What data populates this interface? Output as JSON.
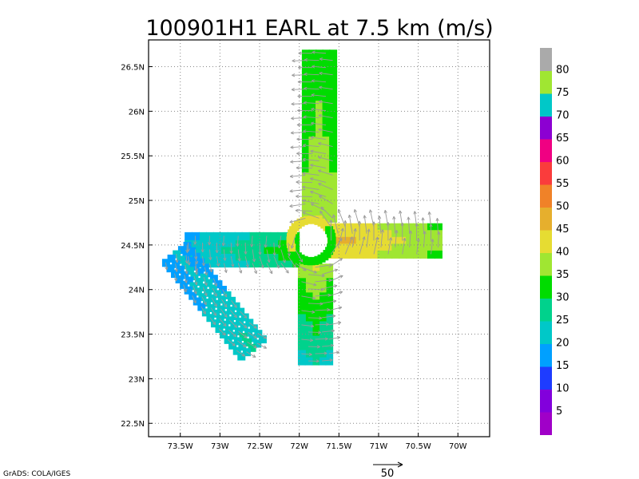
{
  "title": "100901H1 EARL at 7.5 km (m/s)",
  "credit": "GrADS: COLA/IGES",
  "reference_vector": {
    "label": "50",
    "magnitude": 50
  },
  "axes": {
    "x_ticks": [
      {
        "lon": -73.5,
        "label": "73.5W"
      },
      {
        "lon": -73.0,
        "label": "73W"
      },
      {
        "lon": -72.5,
        "label": "72.5W"
      },
      {
        "lon": -72.0,
        "label": "72W"
      },
      {
        "lon": -71.5,
        "label": "71.5W"
      },
      {
        "lon": -71.0,
        "label": "71W"
      },
      {
        "lon": -70.5,
        "label": "70.5W"
      },
      {
        "lon": -70.0,
        "label": "70W"
      }
    ],
    "y_ticks": [
      {
        "lat": 22.5,
        "label": "22.5N"
      },
      {
        "lat": 23.0,
        "label": "23N"
      },
      {
        "lat": 23.5,
        "label": "23.5N"
      },
      {
        "lat": 24.0,
        "label": "24N"
      },
      {
        "lat": 24.5,
        "label": "24.5N"
      },
      {
        "lat": 25.0,
        "label": "25N"
      },
      {
        "lat": 25.5,
        "label": "25.5N"
      },
      {
        "lat": 26.0,
        "label": "26N"
      },
      {
        "lat": 26.5,
        "label": "26.5N"
      }
    ],
    "lon_range": [
      -73.9,
      -69.6
    ],
    "lat_range": [
      22.35,
      26.8
    ],
    "grid": "dotted"
  },
  "colorbar": {
    "labels": [
      "5",
      "10",
      "15",
      "20",
      "25",
      "30",
      "35",
      "40",
      "45",
      "50",
      "55",
      "60",
      "65",
      "70",
      "75",
      "80"
    ],
    "colors": [
      "#a000c8",
      "#8200dc",
      "#1e3cff",
      "#00a0ff",
      "#00c8c8",
      "#00d28c",
      "#00dc00",
      "#a0e632",
      "#e6dc32",
      "#e6af2d",
      "#f08228",
      "#fa3c3c",
      "#f00082",
      "#8c00d2",
      "#00c8c8",
      "#a0e632",
      "#aaaaaa"
    ]
  },
  "chart_data": {
    "type": "map",
    "title": "100901H1 EARL at 7.5 km (m/s)",
    "storm": "EARL",
    "level_km": 7.5,
    "units": "m/s",
    "storm_center": {
      "lon": -71.85,
      "lat": 24.55
    },
    "legs": [
      {
        "name": "north",
        "lon": -71.75,
        "lat_from": 24.8,
        "lat_to": 26.65,
        "speed_from": 40,
        "speed_to": 33
      },
      {
        "name": "south",
        "lon": -71.8,
        "lat_from": 24.25,
        "lat_to": 23.2,
        "speed_from": 40,
        "speed_to": 26
      },
      {
        "name": "east",
        "lat": 24.55,
        "lon_from": -71.6,
        "lon_to": -70.25,
        "speed_from": 47,
        "speed_to": 37
      },
      {
        "name": "west",
        "lat": 24.45,
        "lon_from": -72.05,
        "lon_to": -73.4,
        "speed_from": 33,
        "speed_to": 22
      },
      {
        "name": "southwest",
        "lon_from": -73.55,
        "lat_from": 24.4,
        "lon_to": -72.6,
        "lat_to": 23.35,
        "speed_from": 20,
        "speed_to": 26
      }
    ]
  }
}
